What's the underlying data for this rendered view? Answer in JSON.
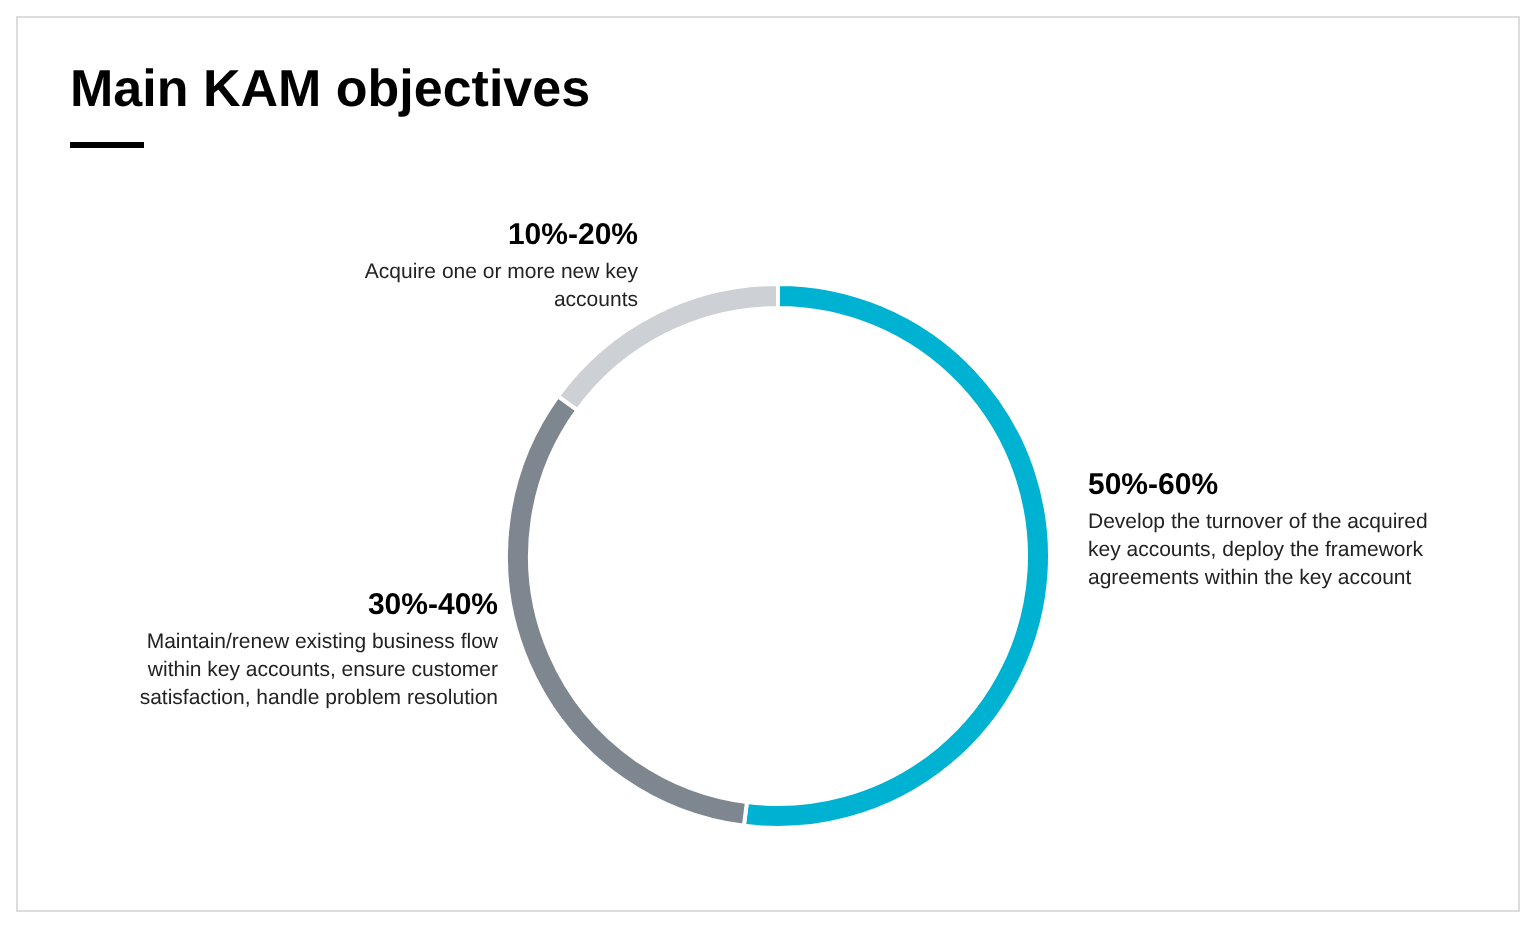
{
  "chart_data": {
    "type": "donut",
    "title": "Main KAM objectives",
    "categories": [
      "Develop the turnover of the acquired key accounts, deploy the framework agreements within the key account",
      "Maintain/renew existing business flow within key accounts, ensure customer satisfaction, handle problem resolution",
      "Acquire one or more new key accounts"
    ],
    "values": [
      52,
      33,
      15
    ],
    "annotations": [
      "50%-60%",
      "30%-40%",
      "10%-20%"
    ],
    "colors": [
      "#00b2d1",
      "#7e8790",
      "#cdd1d5"
    ]
  }
}
